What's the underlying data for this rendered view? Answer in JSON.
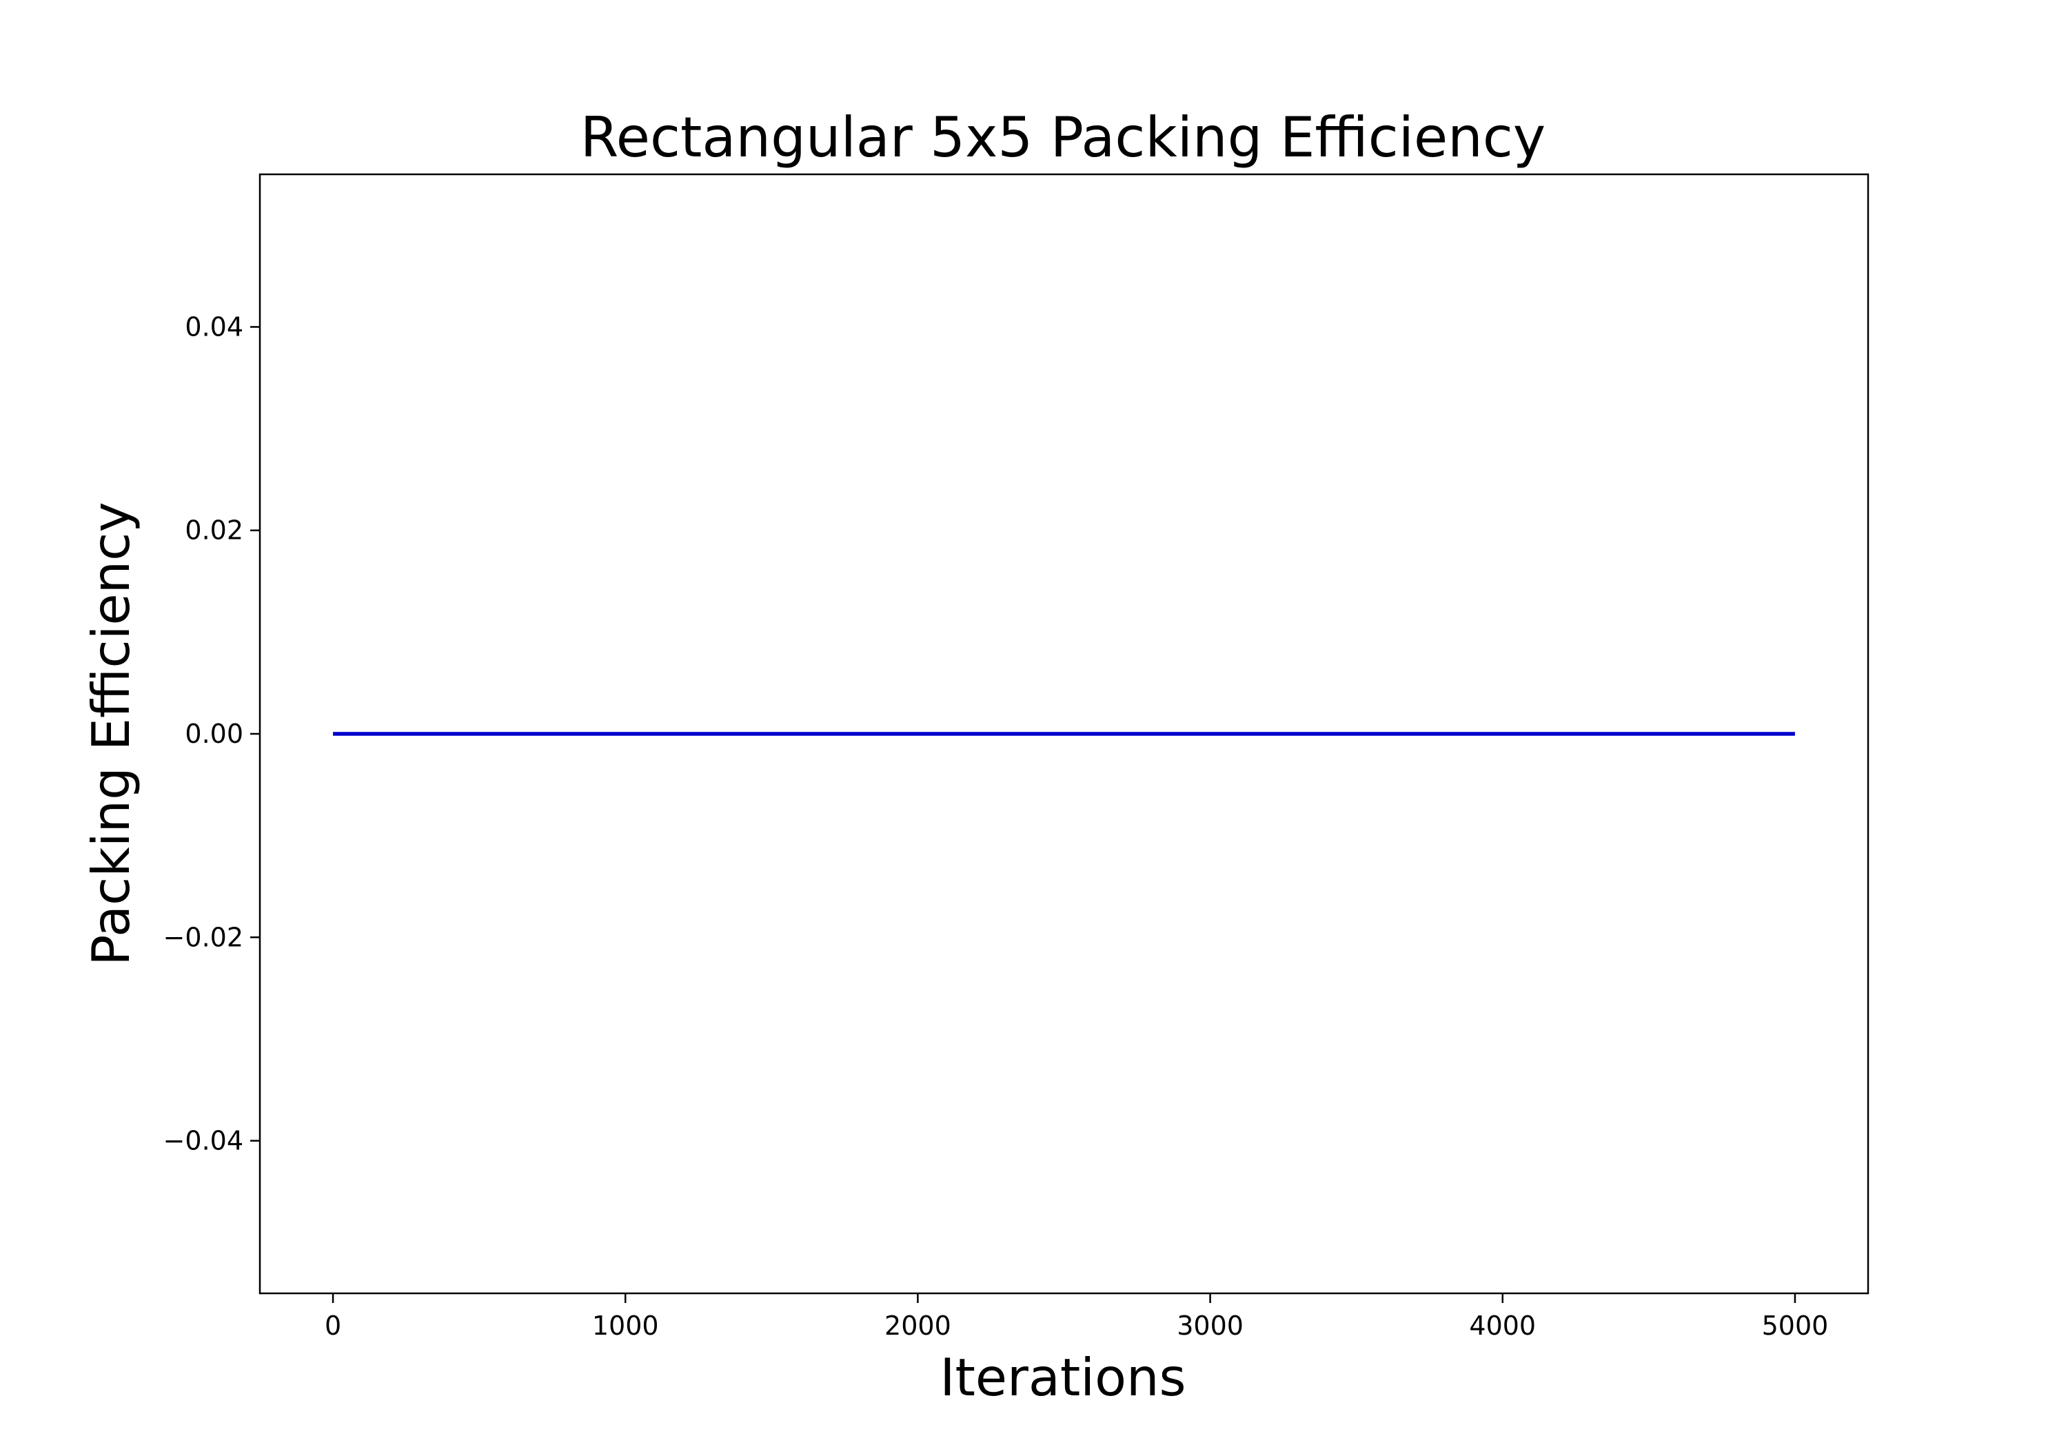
{
  "chart_data": {
    "type": "line",
    "title": "Rectangular 5x5 Packing Efficiency",
    "xlabel": "Iterations",
    "ylabel": "Packing Efficiency",
    "xlim": [
      -250,
      5250
    ],
    "ylim": [
      -0.055,
      0.055
    ],
    "xticks": [
      0,
      1000,
      2000,
      3000,
      4000,
      5000
    ],
    "xtick_labels": [
      "0",
      "1000",
      "2000",
      "3000",
      "4000",
      "5000"
    ],
    "yticks": [
      -0.04,
      -0.02,
      0.0,
      0.02,
      0.04
    ],
    "ytick_labels": [
      "−0.04",
      "−0.02",
      "0.00",
      "0.02",
      "0.04"
    ],
    "grid": false,
    "series": [
      {
        "color": "#0000cc",
        "x": [
          0,
          1000,
          2000,
          3000,
          4000,
          5000
        ],
        "y": [
          0,
          0,
          0,
          0,
          0,
          0
        ]
      }
    ]
  }
}
